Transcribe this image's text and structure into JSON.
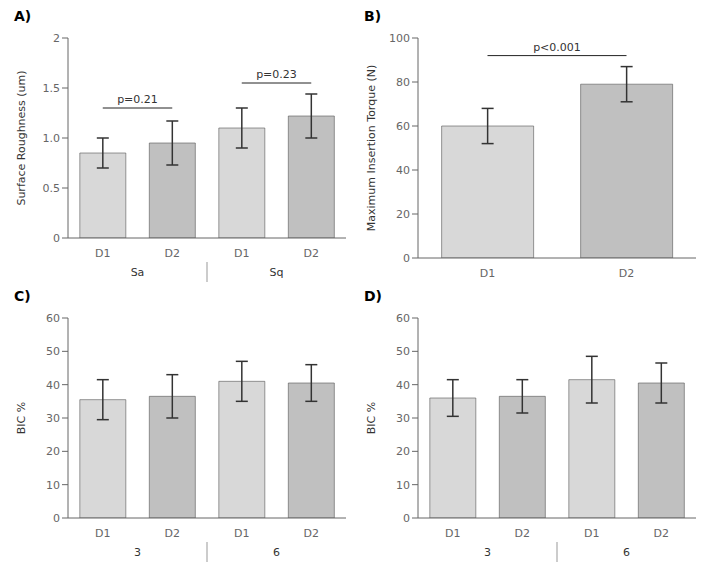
{
  "chart_data": [
    {
      "type": "bar",
      "title": "A)",
      "categories": [
        "D1",
        "D2",
        "D1",
        "D2"
      ],
      "groups": [
        "Sa",
        "Sa",
        "Sq",
        "Sq"
      ],
      "values": [
        0.85,
        0.95,
        1.1,
        1.22
      ],
      "errors": [
        0.15,
        0.22,
        0.2,
        0.22
      ],
      "colors": [
        "#d8d8d8",
        "#c0c0c0",
        "#d8d8d8",
        "#c0c0c0"
      ],
      "ylabel": "Surface Roughness (um)",
      "ylim": [
        0,
        2
      ],
      "yticks": [
        0,
        0.5,
        {
          "value": 1.0,
          "label": "1.0"
        },
        1.5,
        2
      ],
      "annotations": [
        {
          "x1": 0,
          "x2": 1,
          "y": 1.3,
          "text": "p=0.21"
        },
        {
          "x1": 2,
          "x2": 3,
          "y": 1.55,
          "text": "p=0.23"
        }
      ]
    },
    {
      "type": "bar",
      "title": "B)",
      "categories": [
        "D1",
        "D2"
      ],
      "values": [
        60,
        79
      ],
      "errors": [
        8,
        8
      ],
      "colors": [
        "#d8d8d8",
        "#c0c0c0"
      ],
      "ylabel": "Maximum Insertion Torque (N)",
      "ylim": [
        0,
        100
      ],
      "yticks": [
        0,
        20,
        40,
        60,
        80,
        100
      ],
      "annotations": [
        {
          "x1": 0,
          "x2": 1,
          "y": 92,
          "text": "p<0.001"
        }
      ]
    },
    {
      "type": "bar",
      "title": "C)",
      "categories": [
        "D1",
        "D2",
        "D1",
        "D2"
      ],
      "groups": [
        "3",
        "3",
        "6",
        "6"
      ],
      "values": [
        35.5,
        36.5,
        41.0,
        40.5
      ],
      "errors": [
        6.0,
        6.5,
        6.0,
        5.5
      ],
      "colors": [
        "#d8d8d8",
        "#c0c0c0",
        "#d8d8d8",
        "#c0c0c0"
      ],
      "ylabel": "BIC %",
      "ylim": [
        0,
        60
      ],
      "yticks": [
        0,
        10,
        20,
        30,
        40,
        50,
        60
      ]
    },
    {
      "type": "bar",
      "title": "D)",
      "categories": [
        "D1",
        "D2",
        "D1",
        "D2"
      ],
      "groups": [
        "3",
        "3",
        "6",
        "6"
      ],
      "values": [
        36.0,
        36.5,
        41.5,
        40.5
      ],
      "errors": [
        5.5,
        5.0,
        7.0,
        6.0
      ],
      "colors": [
        "#d8d8d8",
        "#c0c0c0",
        "#d8d8d8",
        "#c0c0c0"
      ],
      "ylabel": "BIC %",
      "ylim": [
        0,
        60
      ],
      "yticks": [
        0,
        10,
        20,
        30,
        40,
        50,
        60
      ]
    }
  ]
}
